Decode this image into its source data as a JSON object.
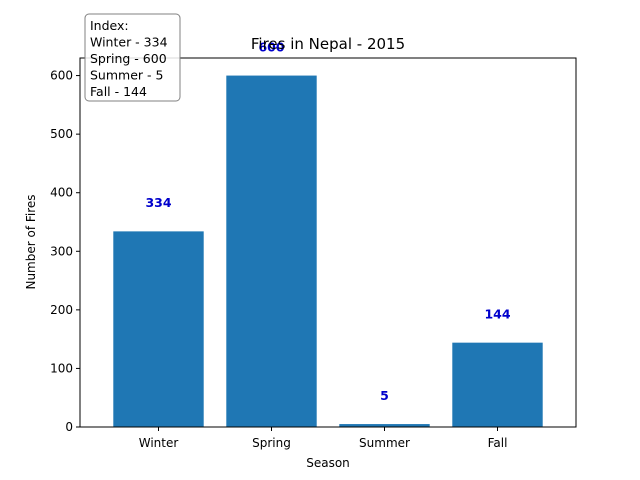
{
  "chart_data": {
    "type": "bar",
    "title": "Fires in Nepal - 2015",
    "xlabel": "Season",
    "ylabel": "Number of Fires",
    "categories": [
      "Winter",
      "Spring",
      "Summer",
      "Fall"
    ],
    "values": [
      334,
      600,
      5,
      144
    ],
    "data_labels": [
      "334",
      "600",
      "5",
      "144"
    ],
    "ylim": [
      0,
      630
    ],
    "yticks": [
      0,
      100,
      200,
      300,
      400,
      500,
      600
    ],
    "grid": false,
    "bar_color": "#1f77b4",
    "label_color": "#0000cc",
    "legend": {
      "placement": "top-left",
      "lines": [
        "Index:",
        "Winter - 334",
        "Spring - 600",
        "Summer - 5",
        "Fall - 144"
      ]
    }
  }
}
